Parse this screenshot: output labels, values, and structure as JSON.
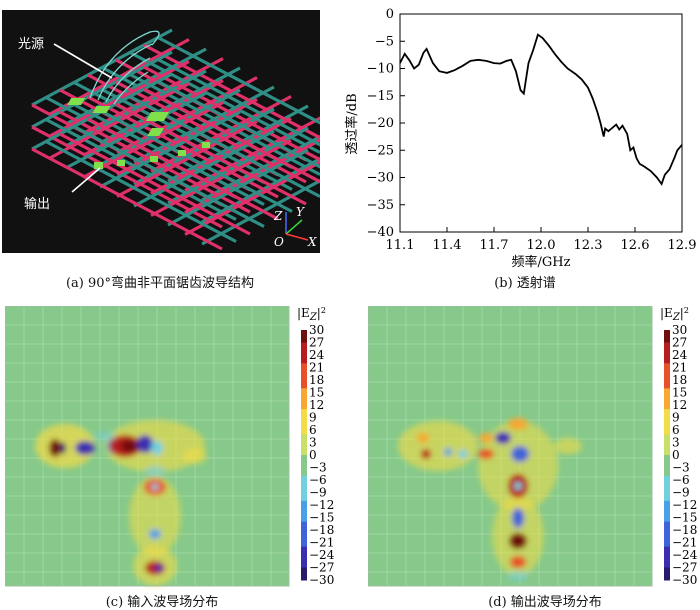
{
  "panel_a": {
    "label_source": "光源",
    "label_output": "输出",
    "axis_z": "Z",
    "axis_y": "Y",
    "axis_o": "O",
    "axis_x": "X",
    "caption": "(a) 90°弯曲非平面锯齿波导结构"
  },
  "panel_b": {
    "caption": "(b) 透射谱"
  },
  "panel_c": {
    "caption": "(c) 输入波导场分布"
  },
  "panel_d": {
    "caption": "(d) 输出波导场分布"
  },
  "colorbar": {
    "title": "|E",
    "title_sub": "Z",
    "title_sup": "2",
    "ticks": [
      "30",
      "27",
      "24",
      "21",
      "18",
      "15",
      "12",
      "9",
      "6",
      "3",
      "0",
      "−3",
      "−6",
      "−9",
      "−12",
      "−15",
      "−18",
      "−21",
      "−24",
      "−27",
      "−30"
    ]
  },
  "colors": {
    "background_3d": "#111111",
    "rod_pink": "#e0306a",
    "rod_teal": "#2f8f86",
    "field_bg": "#86c98a",
    "highlight_green": "#7fe04a"
  },
  "chart_data": [
    {
      "type": "line",
      "title": "",
      "xlabel": "频率/GHz",
      "ylabel": "透过率/dB",
      "xlim": [
        11.1,
        12.9
      ],
      "ylim": [
        -40,
        0
      ],
      "xticks": [
        "11.1",
        "11.4",
        "11.7",
        "12.0",
        "12.3",
        "12.6",
        "12.9"
      ],
      "yticks": [
        "0",
        "−5",
        "−10",
        "−15",
        "−20",
        "−25",
        "−30",
        "−35",
        "−40"
      ],
      "series": [
        {
          "name": "透射谱",
          "x": [
            11.1,
            11.13,
            11.16,
            11.19,
            11.22,
            11.25,
            11.27,
            11.31,
            11.35,
            11.4,
            11.45,
            11.5,
            11.55,
            11.6,
            11.65,
            11.7,
            11.74,
            11.78,
            11.81,
            11.84,
            11.87,
            11.89,
            11.92,
            11.95,
            11.98,
            12.01,
            12.05,
            12.09,
            12.13,
            12.17,
            12.22,
            12.26,
            12.3,
            12.33,
            12.36,
            12.38,
            12.4,
            12.41,
            12.43,
            12.45,
            12.48,
            12.5,
            12.52,
            12.55,
            12.57,
            12.59,
            12.61,
            12.63,
            12.66,
            12.7,
            12.74,
            12.77,
            12.79,
            12.82,
            12.85,
            12.87,
            12.9
          ],
          "y": [
            -9.0,
            -7.3,
            -8.5,
            -10.0,
            -9.3,
            -7.1,
            -6.4,
            -9.0,
            -10.5,
            -10.8,
            -10.3,
            -9.5,
            -8.6,
            -8.4,
            -8.6,
            -9.0,
            -9.1,
            -8.6,
            -8.4,
            -10.5,
            -14.0,
            -14.6,
            -9.0,
            -6.6,
            -3.8,
            -4.4,
            -5.8,
            -7.4,
            -8.8,
            -10.0,
            -11.0,
            -12.0,
            -13.5,
            -15.5,
            -18.0,
            -20.0,
            -22.5,
            -21.0,
            -21.5,
            -21.0,
            -20.3,
            -21.2,
            -20.5,
            -22.0,
            -25.0,
            -24.5,
            -26.5,
            -27.5,
            -28.0,
            -28.8,
            -30.0,
            -31.2,
            -29.5,
            -28.5,
            -26.5,
            -25.0,
            -24.0
          ]
        }
      ]
    },
    {
      "type": "heatmap",
      "title": "(c) 输入波导场分布",
      "colorbar_range": [
        -30,
        30
      ],
      "colorbar_label": "|E_Z|^2",
      "features": [
        {
          "region": "horizontal input waveguide (left)",
          "max_value": 30,
          "min_value": -30
        },
        {
          "region": "vertical output waveguide (bottom)",
          "max_value": 24,
          "min_value": -15
        }
      ]
    },
    {
      "type": "heatmap",
      "title": "(d) 输出波导场分布",
      "colorbar_range": [
        -30,
        30
      ],
      "colorbar_label": "|E_Z|^2",
      "features": [
        {
          "region": "horizontal input waveguide (left)",
          "max_value": 27,
          "min_value": -21
        },
        {
          "region": "vertical output waveguide (bottom)",
          "max_value": 30,
          "min_value": -30
        }
      ]
    }
  ]
}
